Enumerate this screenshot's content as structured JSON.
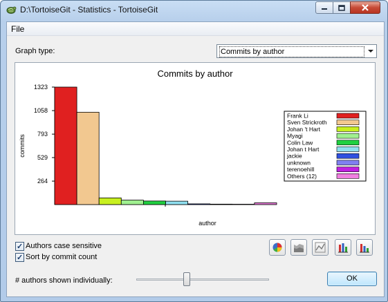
{
  "window": {
    "title": "D:\\TortoiseGit - Statistics - TortoiseGit"
  },
  "menu": {
    "file_label": "File"
  },
  "graph_type": {
    "label": "Graph type:",
    "selected": "Commits by author"
  },
  "options": {
    "case_sensitive_label": "Authors case sensitive",
    "case_sensitive_checked": true,
    "sort_label": "Sort by commit count",
    "sort_checked": true,
    "authors_shown_label": "# authors shown individually:",
    "authors_shown_slider_fraction": 0.38
  },
  "toolbar_icons": [
    "pie-chart-icon",
    "stacked-area-graph-icon",
    "line-graph-icon",
    "stacked-bar-graph-icon",
    "bar-graph-icon"
  ],
  "ok_label": "OK",
  "chart_data": {
    "type": "bar",
    "title": "Commits by author",
    "xlabel": "author",
    "ylabel": "commits",
    "yticks": [
      1323,
      1058,
      793,
      529,
      264
    ],
    "ylim": [
      0,
      1323
    ],
    "legend_position": "right",
    "series": [
      {
        "name": "Frank Li",
        "value": 1323,
        "color": "#e02020"
      },
      {
        "name": "Sven Strickroth",
        "value": 1040,
        "color": "#f2c890"
      },
      {
        "name": "Johan 't Hart",
        "value": 75,
        "color": "#c8f020"
      },
      {
        "name": "Myagi",
        "value": 50,
        "color": "#a0f090"
      },
      {
        "name": "Colin Law",
        "value": 40,
        "color": "#20d040"
      },
      {
        "name": "Johan t Hart",
        "value": 38,
        "color": "#90e0f0"
      },
      {
        "name": "jackie",
        "value": 8,
        "color": "#3050e0"
      },
      {
        "name": "unknown",
        "value": 5,
        "color": "#8080f0"
      },
      {
        "name": "terenoehill",
        "value": 4,
        "color": "#c020e0"
      },
      {
        "name": "Others (12)",
        "value": 20,
        "color": "#f080e0"
      }
    ]
  }
}
